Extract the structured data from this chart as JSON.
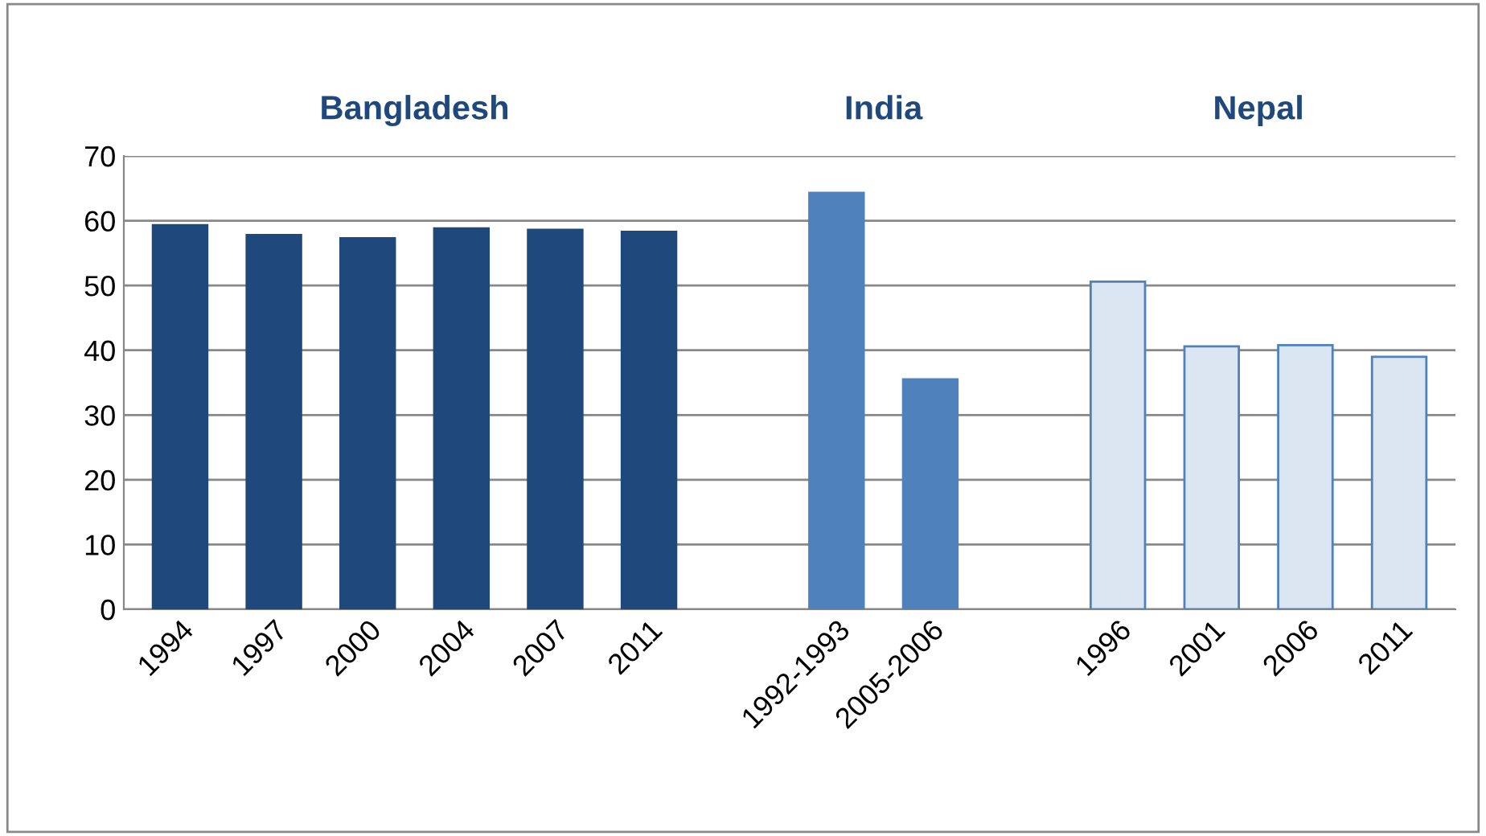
{
  "chart_data": {
    "type": "bar",
    "categories": [
      "1994",
      "1997",
      "2000",
      "2004",
      "2007",
      "2011",
      null,
      "1992-1993",
      "2005-2006",
      null,
      "1996",
      "2001",
      "2006",
      "2011"
    ],
    "series": [
      {
        "color": "#1f497d",
        "values": [
          59.3,
          57.8,
          57.3,
          58.8,
          58.6,
          58.3,
          null,
          null,
          null,
          null,
          null,
          null,
          null,
          null
        ]
      },
      {
        "color": "#4f81bd",
        "values": [
          null,
          null,
          null,
          null,
          null,
          null,
          null,
          64.3,
          35.5,
          null,
          null,
          null,
          null,
          null
        ]
      },
      {
        "color": "#dce6f2",
        "values": [
          null,
          null,
          null,
          null,
          null,
          null,
          null,
          null,
          null,
          null,
          50.6,
          40.6,
          40.8,
          39.0
        ]
      }
    ],
    "annotations": [
      "Bangladesh",
      "India",
      "Nepal"
    ],
    "ylim": [
      0,
      70
    ],
    "yticks": [
      0,
      10,
      20,
      30,
      40,
      50,
      60,
      70
    ],
    "grid": "y",
    "legend": false
  }
}
